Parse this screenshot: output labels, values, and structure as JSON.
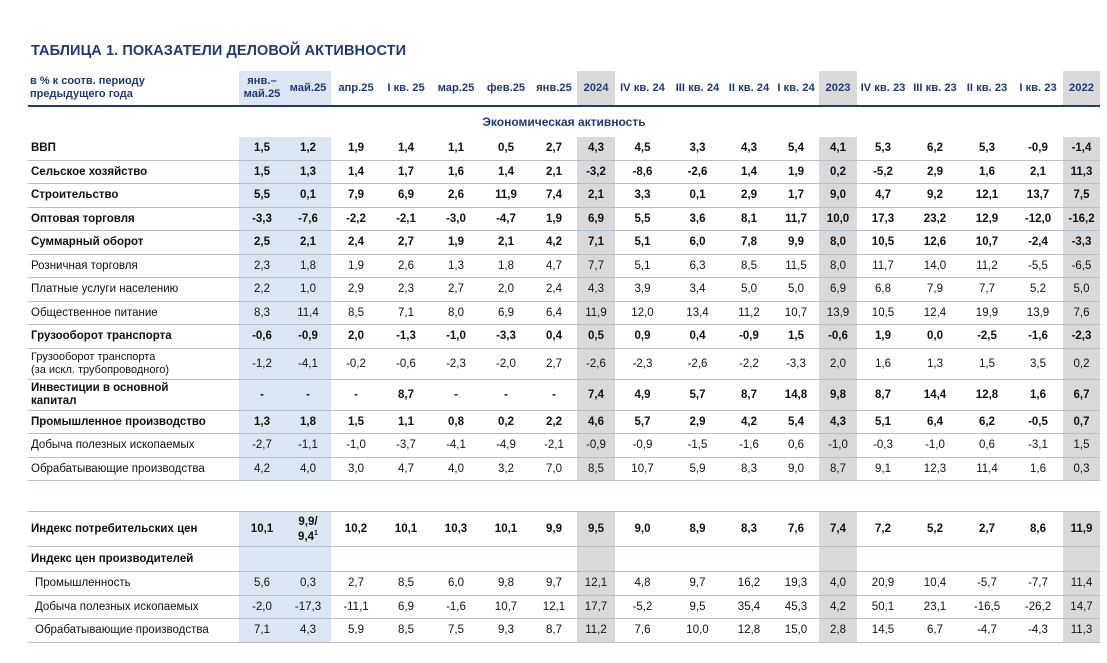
{
  "title": "ТАБЛИЦА 1. ПОКАЗАТЕЛИ ДЕЛОВОЙ АКТИВНОСТИ",
  "header_label_line1": "в % к соотв. периоду",
  "header_label_line2": "предыдущего года",
  "columns": [
    "янв.–\nмай.25",
    "май.25",
    "апр.25",
    "I кв. 25",
    "мар.25",
    "фев.25",
    "янв.25",
    "2024",
    "IV кв. 24",
    "III кв. 24",
    "II кв. 24",
    "I кв. 24",
    "2023",
    "IV кв. 23",
    "III кв. 23",
    "II кв. 23",
    "I кв. 23",
    "2022"
  ],
  "section_title": "Экономическая активность",
  "rows": [
    {
      "label": "ВВП",
      "bold": true,
      "values": [
        "1,5",
        "1,2",
        "1,9",
        "1,4",
        "1,1",
        "0,5",
        "2,7",
        "4,3",
        "4,5",
        "3,3",
        "4,3",
        "5,4",
        "4,1",
        "5,3",
        "6,2",
        "5,3",
        "-0,9",
        "-1,4"
      ]
    },
    {
      "label": "Сельское хозяйство",
      "bold": true,
      "values": [
        "1,5",
        "1,3",
        "1,4",
        "1,7",
        "1,6",
        "1,4",
        "2,1",
        "-3,2",
        "-8,6",
        "-2,6",
        "1,4",
        "1,9",
        "0,2",
        "-5,2",
        "2,9",
        "1,6",
        "2,1",
        "11,3"
      ]
    },
    {
      "label": "Строительство",
      "bold": true,
      "values": [
        "5,5",
        "0,1",
        "7,9",
        "6,9",
        "2,6",
        "11,9",
        "7,4",
        "2,1",
        "3,3",
        "0,1",
        "2,9",
        "1,7",
        "9,0",
        "4,7",
        "9,2",
        "12,1",
        "13,7",
        "7,5"
      ]
    },
    {
      "label": "Оптовая торговля",
      "bold": true,
      "values": [
        "-3,3",
        "-7,6",
        "-2,2",
        "-2,1",
        "-3,0",
        "-4,7",
        "1,9",
        "6,9",
        "5,5",
        "3,6",
        "8,1",
        "11,7",
        "10,0",
        "17,3",
        "23,2",
        "12,9",
        "-12,0",
        "-16,2"
      ]
    },
    {
      "label": "Суммарный оборот",
      "bold": true,
      "values": [
        "2,5",
        "2,1",
        "2,4",
        "2,7",
        "1,9",
        "2,1",
        "4,2",
        "7,1",
        "5,1",
        "6,0",
        "7,8",
        "9,9",
        "8,0",
        "10,5",
        "12,6",
        "10,7",
        "-2,4",
        "-3,3"
      ]
    },
    {
      "label": "Розничная торговля",
      "bold": false,
      "values": [
        "2,3",
        "1,8",
        "1,9",
        "2,6",
        "1,3",
        "1,8",
        "4,7",
        "7,7",
        "5,1",
        "6,3",
        "8,5",
        "11,5",
        "8,0",
        "11,7",
        "14,0",
        "11,2",
        "-5,5",
        "-6,5"
      ]
    },
    {
      "label": "Платные услуги населению",
      "bold": false,
      "values": [
        "2,2",
        "1,0",
        "2,9",
        "2,3",
        "2,7",
        "2,0",
        "2,4",
        "4,3",
        "3,9",
        "3,4",
        "5,0",
        "5,0",
        "6,9",
        "6,8",
        "7,9",
        "7,7",
        "5,2",
        "5,0"
      ]
    },
    {
      "label": "Общественное питание",
      "bold": false,
      "values": [
        "8,3",
        "11,4",
        "8,5",
        "7,1",
        "8,0",
        "6,9",
        "6,4",
        "11,9",
        "12,0",
        "13,4",
        "11,2",
        "10,7",
        "13,9",
        "10,5",
        "12,4",
        "19,9",
        "13,9",
        "7,6"
      ]
    },
    {
      "label": "Грузооборот транспорта",
      "bold": true,
      "values": [
        "-0,6",
        "-0,9",
        "2,0",
        "-1,3",
        "-1,0",
        "-3,3",
        "0,4",
        "0,5",
        "0,9",
        "0,4",
        "-0,9",
        "1,5",
        "-0,6",
        "1,9",
        "0,0",
        "-2,5",
        "-1,6",
        "-2,3"
      ]
    },
    {
      "label": "Грузооборот транспорта\n(за искл. трубопроводного)",
      "bold": false,
      "tall": true,
      "values": [
        "-1,2",
        "-4,1",
        "-0,2",
        "-0,6",
        "-2,3",
        "-2,0",
        "2,7",
        "-2,6",
        "-2,3",
        "-2,6",
        "-2,2",
        "-3,3",
        "2,0",
        "1,6",
        "1,3",
        "1,5",
        "3,5",
        "0,2"
      ]
    },
    {
      "label": "Инвестиции в основной\nкапитал",
      "bold": true,
      "tall": true,
      "values": [
        "-",
        "-",
        "-",
        "8,7",
        "-",
        "-",
        "-",
        "7,4",
        "4,9",
        "5,7",
        "8,7",
        "14,8",
        "9,8",
        "8,7",
        "14,4",
        "12,8",
        "1,6",
        "6,7"
      ]
    },
    {
      "label": "Промышленное производство",
      "bold": true,
      "values": [
        "1,3",
        "1,8",
        "1,5",
        "1,1",
        "0,8",
        "0,2",
        "2,2",
        "4,6",
        "5,7",
        "2,9",
        "4,2",
        "5,4",
        "4,3",
        "5,1",
        "6,4",
        "6,2",
        "-0,5",
        "0,7"
      ]
    },
    {
      "label": "Добыча полезных ископаемых",
      "bold": false,
      "values": [
        "-2,7",
        "-1,1",
        "-1,0",
        "-3,7",
        "-4,1",
        "-4,9",
        "-2,1",
        "-0,9",
        "-0,9",
        "-1,5",
        "-1,6",
        "0,6",
        "-1,0",
        "-0,3",
        "-1,0",
        "0,6",
        "-3,1",
        "1,5"
      ]
    },
    {
      "label": "Обрабатывающие производства",
      "bold": false,
      "values": [
        "4,2",
        "4,0",
        "3,0",
        "4,7",
        "4,0",
        "3,2",
        "7,0",
        "8,5",
        "10,7",
        "5,9",
        "8,3",
        "9,0",
        "8,7",
        "9,1",
        "12,3",
        "11,4",
        "1,6",
        "0,3"
      ]
    }
  ],
  "cpi": {
    "label": "Индекс потребительских цен",
    "values": [
      "10,1",
      "9,9/",
      "10,2",
      "10,1",
      "10,3",
      "10,1",
      "9,9",
      "9,5",
      "9,0",
      "8,9",
      "8,3",
      "7,6",
      "7,4",
      "7,2",
      "5,2",
      "2,7",
      "8,6",
      "11,9"
    ],
    "may_second": "9,4",
    "may_footnote": "1"
  },
  "ppi_title": "Индекс цен производителей",
  "ppi_rows": [
    {
      "label": "Промышленность",
      "values": [
        "5,6",
        "0,3",
        "2,7",
        "8,5",
        "6,0",
        "9,8",
        "9,7",
        "12,1",
        "4,8",
        "9,7",
        "16,2",
        "19,3",
        "4,0",
        "20,9",
        "10,4",
        "-5,7",
        "-7,7",
        "11,4"
      ]
    },
    {
      "label": "Добыча полезных ископаемых",
      "values": [
        "-2,0",
        "-17,3",
        "-11,1",
        "6,9",
        "-1,6",
        "10,7",
        "12,1",
        "17,7",
        "-5,2",
        "9,5",
        "35,4",
        "45,3",
        "4,2",
        "50,1",
        "23,1",
        "-16,5",
        "-26,2",
        "14,7"
      ]
    },
    {
      "label": "Обрабатывающие производства",
      "values": [
        "7,1",
        "4,3",
        "5,9",
        "8,5",
        "7,5",
        "9,3",
        "8,7",
        "11,2",
        "7,6",
        "10,0",
        "12,8",
        "15,0",
        "2,8",
        "14,5",
        "6,7",
        "-4,7",
        "-4,3",
        "11,3"
      ]
    }
  ],
  "colors": {
    "title": "#1f3a78",
    "highlight_blue": "#dce6f2",
    "highlight_gray": "#d9d9d9",
    "rule": "#b9bfc9"
  }
}
